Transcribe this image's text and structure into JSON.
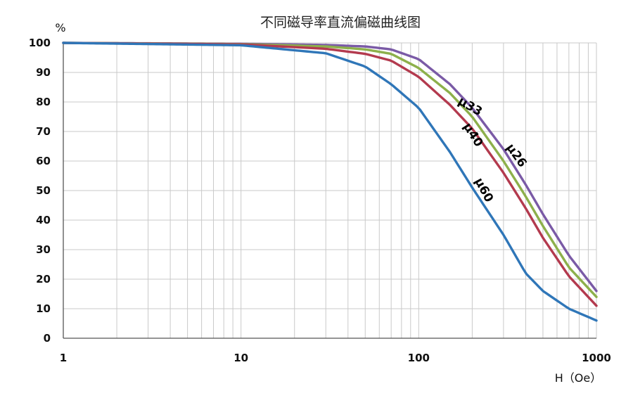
{
  "chart_data": {
    "type": "line",
    "title": "不同磁导率直流偏磁曲线图",
    "xlabel": "H（Oe）",
    "ylabel": "%",
    "xscale": "log",
    "xlim": [
      1,
      1000
    ],
    "ylim": [
      0,
      100
    ],
    "grid": true,
    "x_tick_labels": [
      "1",
      "10",
      "100",
      "1000"
    ],
    "y_tick_labels": [
      "0",
      "10",
      "20",
      "30",
      "40",
      "50",
      "60",
      "70",
      "80",
      "90",
      "100"
    ],
    "series": [
      {
        "name": "μ26",
        "color": "#7a5aa6",
        "points": [
          [
            1,
            100
          ],
          [
            10,
            99.7
          ],
          [
            30,
            99.3
          ],
          [
            50,
            98.8
          ],
          [
            70,
            97.8
          ],
          [
            100,
            94.5
          ],
          [
            150,
            86
          ],
          [
            200,
            78
          ],
          [
            300,
            64
          ],
          [
            400,
            52
          ],
          [
            500,
            42
          ],
          [
            700,
            28
          ],
          [
            1000,
            16
          ]
        ]
      },
      {
        "name": "μ33",
        "color": "#8db04b",
        "points": [
          [
            1,
            100
          ],
          [
            10,
            99.6
          ],
          [
            30,
            98.8
          ],
          [
            50,
            97.8
          ],
          [
            70,
            96.3
          ],
          [
            100,
            91.5
          ],
          [
            150,
            83
          ],
          [
            200,
            75
          ],
          [
            300,
            60
          ],
          [
            400,
            48
          ],
          [
            500,
            38
          ],
          [
            700,
            24
          ],
          [
            1000,
            14
          ]
        ]
      },
      {
        "name": "μ40",
        "color": "#b33a4e",
        "points": [
          [
            1,
            100
          ],
          [
            10,
            99.5
          ],
          [
            30,
            98
          ],
          [
            50,
            96.3
          ],
          [
            70,
            94
          ],
          [
            100,
            88.5
          ],
          [
            150,
            79
          ],
          [
            200,
            71
          ],
          [
            300,
            56
          ],
          [
            400,
            44
          ],
          [
            500,
            34
          ],
          [
            700,
            21
          ],
          [
            1000,
            11
          ]
        ]
      },
      {
        "name": "μ60",
        "color": "#2f76b8",
        "points": [
          [
            1,
            100
          ],
          [
            10,
            99.2
          ],
          [
            30,
            96.5
          ],
          [
            50,
            92
          ],
          [
            70,
            86
          ],
          [
            100,
            78
          ],
          [
            150,
            63
          ],
          [
            200,
            51
          ],
          [
            300,
            35
          ],
          [
            400,
            22
          ],
          [
            500,
            16
          ],
          [
            700,
            10
          ],
          [
            1000,
            6
          ]
        ]
      }
    ]
  }
}
